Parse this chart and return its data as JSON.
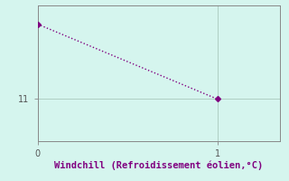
{
  "x": [
    0,
    1
  ],
  "y": [
    14.2,
    11.0
  ],
  "line_color": "#800080",
  "marker": "D",
  "marker_size": 3,
  "line_style": ":",
  "line_width": 1.0,
  "bg_color": "#d5f5ee",
  "xlabel": "Windchill (Refroidissement éolien,°C)",
  "xlabel_fontsize": 7.5,
  "xlim": [
    0,
    1.35
  ],
  "ylim": [
    9.2,
    15.0
  ],
  "yticks": [
    11
  ],
  "xticks": [
    0,
    1
  ],
  "grid_color": "#a8c8bc",
  "grid_lw": 0.6,
  "tick_label_fontsize": 7,
  "tick_color": "#555555",
  "spine_color": "#888888",
  "spine_lw": 0.7
}
